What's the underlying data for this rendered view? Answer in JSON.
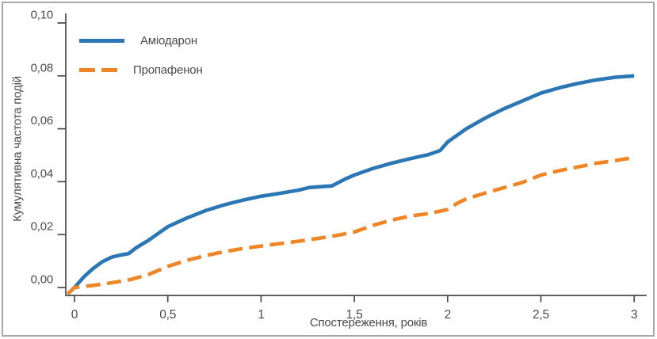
{
  "figure": {
    "background": "#ffffff",
    "border_color": "#a6a6a6",
    "axis_color": "#4a4a4c",
    "text_color": "#4b4b4d"
  },
  "chart_data": {
    "type": "line",
    "title": "",
    "xlabel": "Спостереження, років",
    "ylabel": "Кумулятивна частота подій",
    "xlim": [
      -0.05,
      3.07
    ],
    "ylim": [
      -0.003,
      0.1036
    ],
    "grid": false,
    "legend_position": "top-left",
    "x_ticks": [
      0,
      0.5,
      1,
      1.5,
      2,
      2.5,
      3
    ],
    "x_tick_labels": [
      "0",
      "0,5",
      "1",
      "1,5",
      "2",
      "2,5",
      "3"
    ],
    "y_ticks": [
      0,
      0.02,
      0.04,
      0.06,
      0.08,
      0.1
    ],
    "y_tick_labels": [
      "0,00",
      "0,02",
      "0,04",
      "0,06",
      "0,08",
      "0,10"
    ],
    "series": [
      {
        "name": "Аміодарон",
        "color": "#2b76b4",
        "style": "solid",
        "points": [
          [
            0,
            0.0
          ],
          [
            0.05,
            0.004
          ],
          [
            0.1,
            0.0072
          ],
          [
            0.15,
            0.0098
          ],
          [
            0.2,
            0.0115
          ],
          [
            0.24,
            0.0122
          ],
          [
            0.29,
            0.0128
          ],
          [
            0.33,
            0.015
          ],
          [
            0.4,
            0.018
          ],
          [
            0.45,
            0.0205
          ],
          [
            0.5,
            0.023
          ],
          [
            0.6,
            0.0262
          ],
          [
            0.7,
            0.029
          ],
          [
            0.8,
            0.0312
          ],
          [
            0.9,
            0.033
          ],
          [
            1.0,
            0.0345
          ],
          [
            1.1,
            0.0356
          ],
          [
            1.2,
            0.0368
          ],
          [
            1.26,
            0.0378
          ],
          [
            1.38,
            0.0384
          ],
          [
            1.45,
            0.041
          ],
          [
            1.5,
            0.0425
          ],
          [
            1.6,
            0.045
          ],
          [
            1.7,
            0.047
          ],
          [
            1.8,
            0.0487
          ],
          [
            1.9,
            0.0503
          ],
          [
            1.96,
            0.0518
          ],
          [
            2.0,
            0.055
          ],
          [
            2.1,
            0.06
          ],
          [
            2.2,
            0.064
          ],
          [
            2.3,
            0.0675
          ],
          [
            2.4,
            0.0705
          ],
          [
            2.5,
            0.0735
          ],
          [
            2.6,
            0.0755
          ],
          [
            2.7,
            0.0772
          ],
          [
            2.8,
            0.0785
          ],
          [
            2.9,
            0.0795
          ],
          [
            3.0,
            0.08
          ]
        ]
      },
      {
        "name": "Пропафенон",
        "color": "#ee8526",
        "style": "dashed",
        "points": [
          [
            0,
            0.0
          ],
          [
            0.1,
            0.0008
          ],
          [
            0.2,
            0.0018
          ],
          [
            0.3,
            0.003
          ],
          [
            0.4,
            0.005
          ],
          [
            0.5,
            0.008
          ],
          [
            0.6,
            0.0102
          ],
          [
            0.7,
            0.012
          ],
          [
            0.8,
            0.0135
          ],
          [
            0.9,
            0.0147
          ],
          [
            1.0,
            0.0157
          ],
          [
            1.1,
            0.0166
          ],
          [
            1.2,
            0.0175
          ],
          [
            1.3,
            0.0185
          ],
          [
            1.4,
            0.0196
          ],
          [
            1.5,
            0.021
          ],
          [
            1.6,
            0.0235
          ],
          [
            1.7,
            0.0255
          ],
          [
            1.8,
            0.027
          ],
          [
            1.9,
            0.028
          ],
          [
            2.0,
            0.0295
          ],
          [
            2.05,
            0.0318
          ],
          [
            2.1,
            0.0335
          ],
          [
            2.2,
            0.0357
          ],
          [
            2.3,
            0.0377
          ],
          [
            2.4,
            0.0397
          ],
          [
            2.5,
            0.0425
          ],
          [
            2.6,
            0.0442
          ],
          [
            2.7,
            0.0456
          ],
          [
            2.8,
            0.047
          ],
          [
            2.9,
            0.048
          ],
          [
            3.0,
            0.0492
          ]
        ]
      }
    ]
  },
  "legend": {
    "items": [
      {
        "label": "Аміодарон"
      },
      {
        "label": "Пропафенон"
      }
    ]
  }
}
